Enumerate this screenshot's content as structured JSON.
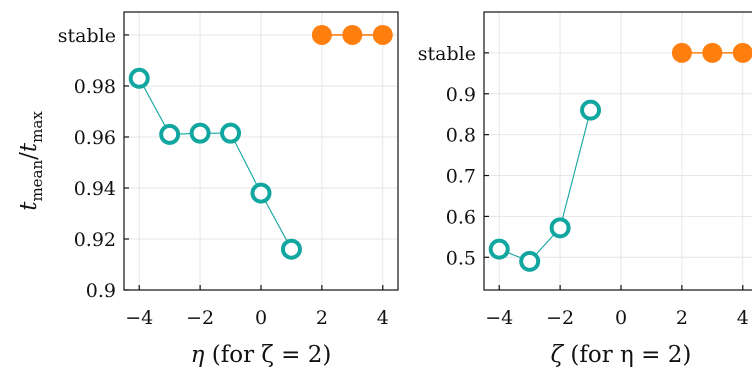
{
  "chart_data": [
    {
      "type": "line",
      "panel": "left",
      "xlabel_var": "η",
      "xlabel_note": "(for ζ = 2)",
      "ylabel": "t_mean/t_max",
      "ylabel_main": "t",
      "ylabel_sub1": "mean",
      "ylabel_sub2": "max",
      "xlim": [
        -4.5,
        4.5
      ],
      "ylim": [
        0.9,
        1.009
      ],
      "x_ticks": [
        -4,
        -2,
        0,
        2,
        4
      ],
      "x_tick_labels": [
        "−4",
        "−2",
        "0",
        "2",
        "4"
      ],
      "y_ticks": [
        0.9,
        0.92,
        0.94,
        0.96,
        0.98
      ],
      "y_tick_labels": [
        "0.9",
        "0.92",
        "0.94",
        "0.96",
        "0.98"
      ],
      "stable_label": "stable",
      "stable_y": 1.0,
      "grid": true,
      "series": [
        {
          "kind": "value",
          "color": "#12a6a0",
          "marker": "open-circle",
          "x": [
            -4,
            -3,
            -2,
            -1,
            0,
            1
          ],
          "y": [
            0.983,
            0.961,
            0.9615,
            0.9615,
            0.938,
            0.916
          ]
        },
        {
          "kind": "stable",
          "color": "#ff7f0e",
          "marker": "filled-circle",
          "x": [
            2,
            3,
            4
          ]
        }
      ]
    },
    {
      "type": "line",
      "panel": "right",
      "xlabel_var": "ζ",
      "xlabel_note": "(for η = 2)",
      "xlim": [
        -4.5,
        4.5
      ],
      "ylim": [
        0.42,
        1.1
      ],
      "x_ticks": [
        -4,
        -2,
        0,
        2,
        4
      ],
      "x_tick_labels": [
        "−4",
        "−2",
        "0",
        "2",
        "4"
      ],
      "y_ticks": [
        0.5,
        0.6,
        0.7,
        0.8,
        0.9
      ],
      "y_tick_labels": [
        "0.5",
        "0.6",
        "0.7",
        "0.8",
        "0.9"
      ],
      "stable_label": "stable",
      "stable_y": 1.0,
      "grid": true,
      "series": [
        {
          "kind": "value",
          "color": "#12a6a0",
          "marker": "open-circle",
          "x": [
            -4,
            -3,
            -2,
            -1
          ],
          "y": [
            0.52,
            0.49,
            0.572,
            0.86
          ]
        },
        {
          "kind": "stable",
          "color": "#ff7f0e",
          "marker": "filled-circle",
          "x": [
            2,
            3,
            4
          ]
        }
      ]
    }
  ]
}
